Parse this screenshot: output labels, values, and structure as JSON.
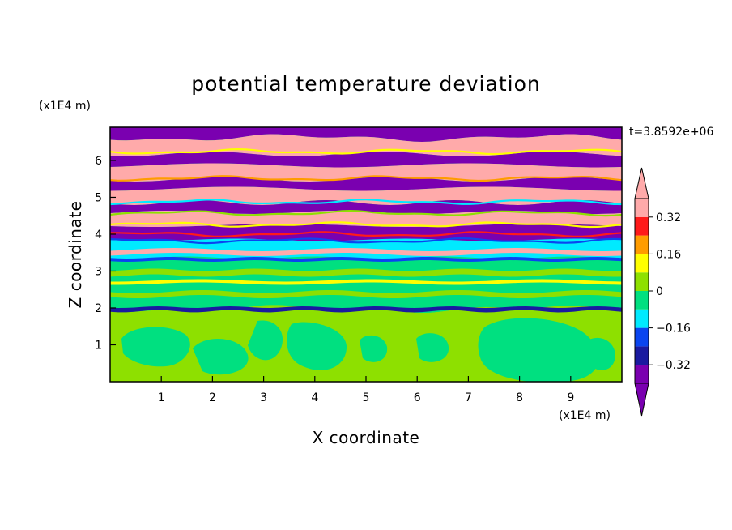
{
  "chart_data": {
    "type": "heatmap",
    "title": "potential temperature deviation",
    "xlabel": "X coordinate",
    "ylabel": "Z coordinate",
    "x_unit": "(x1E4 m)",
    "y_unit": "(x1E4 m)",
    "time_label": "t=3.8592e+06",
    "xlim": [
      0,
      10
    ],
    "ylim": [
      0,
      6.9
    ],
    "x_ticks": [
      "1",
      "2",
      "3",
      "4",
      "5",
      "6",
      "7",
      "8",
      "9"
    ],
    "y_ticks": [
      "1",
      "2",
      "3",
      "4",
      "5",
      "6"
    ],
    "x_tick_values": [
      1,
      2,
      3,
      4,
      5,
      6,
      7,
      8,
      9
    ],
    "y_tick_values": [
      1,
      2,
      3,
      4,
      5,
      6
    ],
    "colorbar": {
      "levels": [
        -0.4,
        -0.32,
        -0.24,
        -0.16,
        -0.08,
        0,
        0.08,
        0.16,
        0.24,
        0.32,
        0.4
      ],
      "tick_labels": [
        "0.32",
        "0.16",
        "0",
        "−0.16",
        "−0.32"
      ],
      "tick_values": [
        0.32,
        0.16,
        0,
        -0.16,
        -0.32
      ],
      "colors_low_to_high": [
        "#7a00b0",
        "#1a1aa0",
        "#0a45f0",
        "#00eaff",
        "#00e080",
        "#8ee000",
        "#ffff00",
        "#ff9c00",
        "#ff1a1a",
        "#ffaaaa"
      ],
      "under_color": "#7a00b0",
      "over_color": "#ffaaaa"
    }
  }
}
